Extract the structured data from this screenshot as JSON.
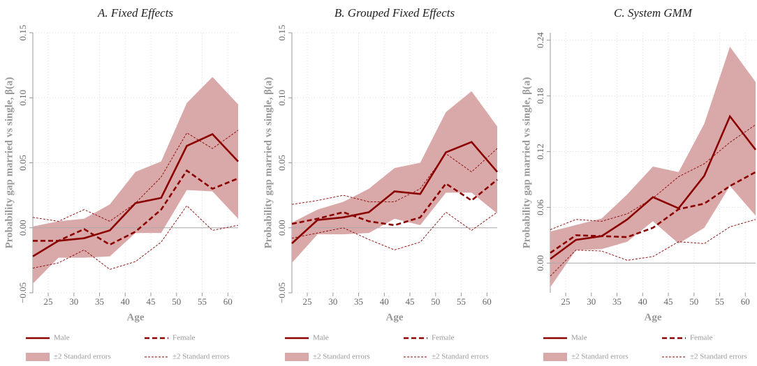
{
  "chart_data": [
    {
      "type": "line",
      "title": "A. Fixed Effects",
      "y_label": "Probability gap married vs single, β(a)",
      "x_label": "Age",
      "x": [
        22,
        27,
        32,
        37,
        42,
        47,
        52,
        57,
        62
      ],
      "xlim": [
        22,
        62
      ],
      "xticks": [
        25,
        30,
        35,
        40,
        45,
        50,
        55,
        60
      ],
      "ylim": [
        -0.05,
        0.15
      ],
      "yticks": [
        {
          "value": -0.05,
          "label": "−0.05"
        },
        {
          "value": 0,
          "label": "0.00"
        },
        0.05,
        {
          "value": 0.1,
          "label": "0.10"
        },
        0.15
      ],
      "reference_line": 0,
      "grid": true,
      "series": [
        {
          "name": "Male",
          "color": "#8b0000",
          "style": "solid",
          "values": [
            -0.022,
            -0.01,
            -0.008,
            -0.002,
            0.019,
            0.023,
            0.063,
            0.072,
            0.051
          ]
        },
        {
          "name": "Female",
          "color": "#8b0000",
          "style": "dashed",
          "values": [
            -0.01,
            -0.01,
            -0.001,
            -0.013,
            -0.003,
            0.014,
            0.044,
            0.03,
            0.038
          ]
        },
        {
          "name": "±2 Standard errors",
          "color": "#d9a9a9",
          "style": "band",
          "lower": [
            -0.043,
            -0.023,
            -0.023,
            -0.022,
            -0.004,
            -0.004,
            0.029,
            0.028,
            0.007
          ],
          "upper": [
            0.001,
            0.005,
            0.007,
            0.018,
            0.043,
            0.051,
            0.096,
            0.116,
            0.095
          ]
        },
        {
          "name": "±2 Standard errors",
          "color": "#8b0000",
          "style": "thin-dashed",
          "lower": [
            -0.031,
            -0.027,
            -0.017,
            -0.032,
            -0.026,
            -0.011,
            0.017,
            -0.002,
            0.002
          ],
          "upper": [
            0.008,
            0.005,
            0.014,
            0.005,
            0.019,
            0.039,
            0.073,
            0.061,
            0.075
          ]
        }
      ]
    },
    {
      "type": "line",
      "title": "B. Grouped Fixed Effects",
      "y_label": "Probability gap married vs single, β(a)",
      "x_label": "Age",
      "x": [
        22,
        27,
        32,
        37,
        42,
        47,
        52,
        57,
        62
      ],
      "xlim": [
        22,
        62
      ],
      "xticks": [
        25,
        30,
        35,
        40,
        45,
        50,
        55,
        60
      ],
      "ylim": [
        -0.05,
        0.15
      ],
      "yticks": [
        {
          "value": -0.05,
          "label": "−0.05"
        },
        {
          "value": 0,
          "label": "0.00"
        },
        0.05,
        {
          "value": 0.1,
          "label": "0.10"
        },
        0.15
      ],
      "reference_line": 0,
      "grid": true,
      "series": [
        {
          "name": "Male",
          "color": "#8b0000",
          "style": "solid",
          "values": [
            -0.012,
            0.006,
            0.008,
            0.012,
            0.028,
            0.026,
            0.058,
            0.066,
            0.043
          ]
        },
        {
          "name": "Female",
          "color": "#8b0000",
          "style": "dashed",
          "values": [
            0.003,
            0.007,
            0.012,
            0.005,
            0.002,
            0.008,
            0.034,
            0.021,
            0.037
          ]
        },
        {
          "name": "±2 Standard errors",
          "color": "#d9a9a9",
          "style": "band",
          "lower": [
            -0.027,
            -0.005,
            -0.005,
            -0.004,
            0.007,
            0.002,
            0.027,
            0.027,
            0.011
          ],
          "upper": [
            0.004,
            0.014,
            0.02,
            0.03,
            0.046,
            0.05,
            0.089,
            0.105,
            0.078
          ]
        },
        {
          "name": "±2 Standard errors",
          "color": "#8b0000",
          "style": "thin-dashed",
          "lower": [
            -0.008,
            -0.004,
            0.0,
            -0.009,
            -0.017,
            -0.011,
            0.012,
            -0.002,
            0.012
          ],
          "upper": [
            0.018,
            0.021,
            0.025,
            0.02,
            0.02,
            0.03,
            0.057,
            0.043,
            0.061
          ]
        }
      ]
    },
    {
      "type": "line",
      "title": "C. System GMM",
      "y_label": "Probability gap married vs single, β(a)",
      "x_label": "Age",
      "x": [
        22,
        27,
        32,
        37,
        42,
        47,
        52,
        57,
        62
      ],
      "xlim": [
        22,
        62
      ],
      "xticks": [
        25,
        30,
        35,
        40,
        45,
        50,
        55,
        60
      ],
      "ylim": [
        -0.032,
        0.248
      ],
      "yticks": [
        {
          "value": 0,
          "label": "0.00"
        },
        0.06,
        0.12,
        0.18,
        0.24
      ],
      "reference_line": 0,
      "grid": true,
      "series": [
        {
          "name": "Male",
          "color": "#8b0000",
          "style": "solid",
          "values": [
            0.0045,
            0.025,
            0.029,
            0.047,
            0.071,
            0.059,
            0.094,
            0.158,
            0.122
          ]
        },
        {
          "name": "Female",
          "color": "#8b0000",
          "style": "dashed",
          "values": [
            0.011,
            0.03,
            0.029,
            0.028,
            0.038,
            0.058,
            0.064,
            0.083,
            0.098
          ]
        },
        {
          "name": "±2 Standard errors",
          "color": "#d9a9a9",
          "style": "band",
          "lower": [
            -0.026,
            0.014,
            0.015,
            0.023,
            0.045,
            0.021,
            0.038,
            0.083,
            0.051
          ],
          "upper": [
            0.034,
            0.041,
            0.048,
            0.074,
            0.104,
            0.098,
            0.15,
            0.233,
            0.195
          ]
        },
        {
          "name": "±2 Standard errors",
          "color": "#8b0000",
          "style": "thin-dashed",
          "lower": [
            -0.014,
            0.014,
            0.013,
            0.003,
            0.007,
            0.023,
            0.021,
            0.039,
            0.047
          ],
          "upper": [
            0.036,
            0.047,
            0.045,
            0.053,
            0.07,
            0.093,
            0.107,
            0.13,
            0.149
          ]
        }
      ]
    }
  ]
}
